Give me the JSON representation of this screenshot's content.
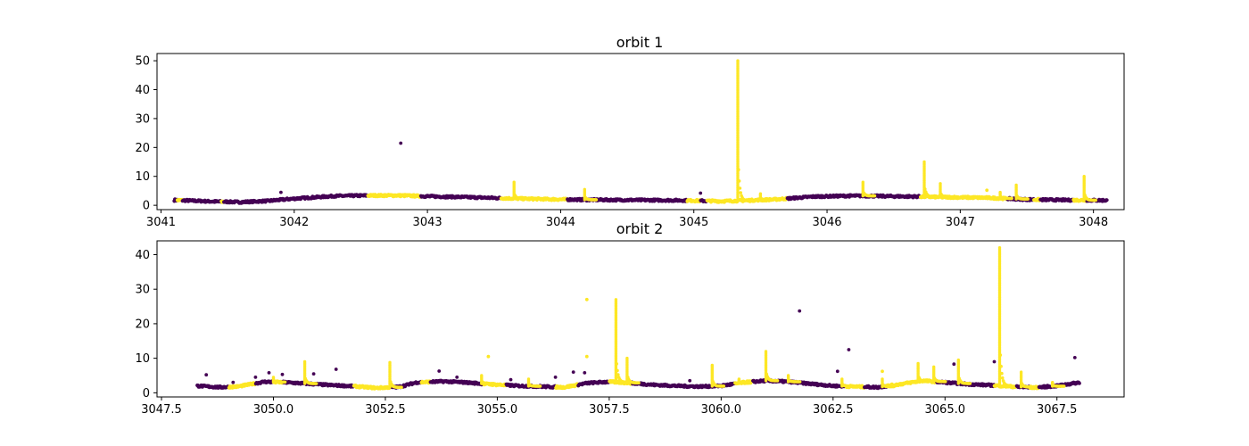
{
  "chart_data": [
    {
      "type": "scatter",
      "title": "orbit 1",
      "xlabel": "",
      "ylabel": "",
      "xlim": [
        3040.97,
        3048.23
      ],
      "ylim": [
        -1.5,
        52.5
      ],
      "x_ticks": [
        3041,
        3042,
        3043,
        3044,
        3045,
        3046,
        3047,
        3048
      ],
      "y_ticks": [
        0,
        10,
        20,
        30,
        40,
        50
      ],
      "colors": {
        "class_0": "#440154",
        "class_1": "#fde725"
      },
      "baseline": [
        [
          3041.1,
          1.8,
          0
        ],
        [
          3041.4,
          1.3,
          0
        ],
        [
          3041.6,
          1.1,
          0
        ],
        [
          3041.8,
          1.5,
          0
        ],
        [
          3042.0,
          2.3,
          0
        ],
        [
          3042.3,
          3.2,
          0
        ],
        [
          3042.6,
          3.4,
          1
        ],
        [
          3042.8,
          3.4,
          1
        ],
        [
          3043.0,
          3.1,
          0
        ],
        [
          3043.3,
          2.8,
          0
        ],
        [
          3043.6,
          2.4,
          1
        ],
        [
          3043.9,
          2.1,
          1
        ],
        [
          3044.2,
          1.9,
          0
        ],
        [
          3044.6,
          1.8,
          0
        ],
        [
          3044.9,
          1.7,
          0
        ],
        [
          3045.2,
          1.4,
          0
        ],
        [
          3045.35,
          1.6,
          1
        ],
        [
          3045.6,
          2.0,
          1
        ],
        [
          3045.9,
          3.0,
          0
        ],
        [
          3046.2,
          3.3,
          0
        ],
        [
          3046.5,
          3.1,
          0
        ],
        [
          3046.7,
          3.0,
          0
        ],
        [
          3046.9,
          2.8,
          1
        ],
        [
          3047.2,
          2.6,
          1
        ],
        [
          3047.5,
          2.0,
          0
        ],
        [
          3047.8,
          1.8,
          0
        ],
        [
          3048.1,
          1.7,
          0
        ]
      ],
      "yellow_segments": [
        [
          3041.12,
          3041.16
        ],
        [
          3041.45,
          3041.47
        ],
        [
          3042.55,
          3042.95
        ],
        [
          3043.55,
          3044.05
        ],
        [
          3044.95,
          3045.05
        ],
        [
          3045.1,
          3045.7
        ],
        [
          3046.7,
          3047.35
        ],
        [
          3047.55,
          3047.6
        ],
        [
          3047.85,
          3047.95
        ]
      ],
      "spikes": [
        [
          3043.65,
          8.0
        ],
        [
          3044.18,
          5.5
        ],
        [
          3045.33,
          50.0
        ],
        [
          3045.5,
          4.0
        ],
        [
          3046.27,
          8.0
        ],
        [
          3046.73,
          15.0
        ],
        [
          3046.85,
          7.5
        ],
        [
          3047.3,
          4.5
        ],
        [
          3047.42,
          7.0
        ],
        [
          3047.93,
          10.0
        ]
      ],
      "outliers": [
        [
          3042.8,
          21.5,
          0
        ],
        [
          3041.9,
          4.5,
          0
        ],
        [
          3045.05,
          4.2,
          0
        ],
        [
          3047.2,
          5.2,
          1
        ]
      ]
    },
    {
      "type": "scatter",
      "title": "orbit 2",
      "xlabel": "",
      "ylabel": "",
      "xlim": [
        3047.4,
        3069.0
      ],
      "ylim": [
        -1.2,
        44.0
      ],
      "x_ticks": [
        3047.5,
        3050.0,
        3052.5,
        3055.0,
        3057.5,
        3060.0,
        3062.5,
        3065.0,
        3067.5
      ],
      "x_tick_labels": [
        "3047.5",
        "3050.0",
        "3052.5",
        "3055.0",
        "3057.5",
        "3060.0",
        "3062.5",
        "3065.0",
        "3067.5"
      ],
      "y_ticks": [
        0,
        10,
        20,
        30,
        40
      ],
      "colors": {
        "class_0": "#440154",
        "class_1": "#fde725"
      },
      "baseline": [
        [
          3048.3,
          2.0,
          0
        ],
        [
          3048.8,
          1.6,
          0
        ],
        [
          3049.2,
          1.8,
          0
        ],
        [
          3049.8,
          3.2,
          0
        ],
        [
          3050.3,
          3.0,
          0
        ],
        [
          3050.8,
          2.6,
          0
        ],
        [
          3051.3,
          2.2,
          0
        ],
        [
          3051.8,
          1.9,
          1
        ],
        [
          3052.3,
          1.4,
          0
        ],
        [
          3052.8,
          1.7,
          0
        ],
        [
          3053.2,
          3.0,
          0
        ],
        [
          3053.8,
          3.3,
          0
        ],
        [
          3054.3,
          3.0,
          0
        ],
        [
          3054.8,
          2.5,
          0
        ],
        [
          3055.5,
          2.0,
          0
        ],
        [
          3056.0,
          1.8,
          1
        ],
        [
          3056.5,
          1.6,
          0
        ],
        [
          3057.0,
          2.8,
          0
        ],
        [
          3057.5,
          3.2,
          0
        ],
        [
          3058.0,
          2.8,
          0
        ],
        [
          3058.5,
          2.3,
          0
        ],
        [
          3059.0,
          2.0,
          0
        ],
        [
          3059.5,
          1.8,
          0
        ],
        [
          3060.0,
          2.0,
          0
        ],
        [
          3060.5,
          3.0,
          0
        ],
        [
          3061.0,
          3.5,
          0
        ],
        [
          3061.5,
          3.2,
          0
        ],
        [
          3062.0,
          2.6,
          0
        ],
        [
          3062.5,
          2.0,
          0
        ],
        [
          3063.0,
          1.8,
          0
        ],
        [
          3063.5,
          1.6,
          0
        ],
        [
          3064.0,
          2.5,
          1
        ],
        [
          3064.5,
          3.5,
          1
        ],
        [
          3065.0,
          3.0,
          0
        ],
        [
          3065.5,
          2.5,
          0
        ],
        [
          3066.0,
          2.2,
          0
        ],
        [
          3066.5,
          1.8,
          1
        ],
        [
          3067.0,
          1.5,
          0
        ],
        [
          3067.5,
          2.0,
          0
        ],
        [
          3068.0,
          3.0,
          0
        ]
      ],
      "yellow_segments": [
        [
          3049.0,
          3049.6
        ],
        [
          3050.0,
          3050.2
        ],
        [
          3051.8,
          3052.6
        ],
        [
          3053.3,
          3053.5
        ],
        [
          3054.7,
          3055.2
        ],
        [
          3056.3,
          3056.8
        ],
        [
          3057.5,
          3058.0
        ],
        [
          3060.3,
          3060.7
        ],
        [
          3062.8,
          3063.2
        ],
        [
          3063.7,
          3064.8
        ],
        [
          3066.1,
          3066.6
        ],
        [
          3066.9,
          3067.1
        ]
      ],
      "spikes": [
        [
          3050.0,
          4.5
        ],
        [
          3050.7,
          9.0
        ],
        [
          3052.6,
          8.8
        ],
        [
          3054.65,
          5.0
        ],
        [
          3055.7,
          4.0
        ],
        [
          3057.65,
          27.0
        ],
        [
          3057.9,
          10.0
        ],
        [
          3059.8,
          8.0
        ],
        [
          3060.4,
          4.0
        ],
        [
          3061.0,
          12.0
        ],
        [
          3061.5,
          5.0
        ],
        [
          3062.7,
          4.0
        ],
        [
          3063.6,
          4.0
        ],
        [
          3064.4,
          8.5
        ],
        [
          3064.75,
          7.5
        ],
        [
          3065.3,
          9.5
        ],
        [
          3066.22,
          42.0
        ],
        [
          3066.7,
          6.0
        ],
        [
          3067.4,
          3.0
        ]
      ],
      "outliers": [
        [
          3048.5,
          5.2,
          0
        ],
        [
          3049.1,
          3.0,
          0
        ],
        [
          3049.6,
          4.5,
          0
        ],
        [
          3049.9,
          5.8,
          0
        ],
        [
          3050.2,
          5.3,
          0
        ],
        [
          3050.9,
          5.5,
          0
        ],
        [
          3051.4,
          6.8,
          0
        ],
        [
          3053.7,
          6.3,
          0
        ],
        [
          3054.8,
          10.5,
          1
        ],
        [
          3054.1,
          4.5,
          0
        ],
        [
          3055.3,
          3.8,
          0
        ],
        [
          3056.3,
          4.5,
          0
        ],
        [
          3056.7,
          6.0,
          0
        ],
        [
          3056.95,
          5.8,
          0
        ],
        [
          3057.0,
          27.0,
          1
        ],
        [
          3057.0,
          10.5,
          1
        ],
        [
          3059.3,
          3.5,
          0
        ],
        [
          3061.75,
          23.7,
          0
        ],
        [
          3062.6,
          6.2,
          0
        ],
        [
          3062.85,
          12.5,
          0
        ],
        [
          3063.6,
          6.2,
          1
        ],
        [
          3065.2,
          8.3,
          0
        ],
        [
          3066.1,
          9.0,
          0
        ],
        [
          3067.9,
          10.2,
          0
        ]
      ]
    }
  ]
}
